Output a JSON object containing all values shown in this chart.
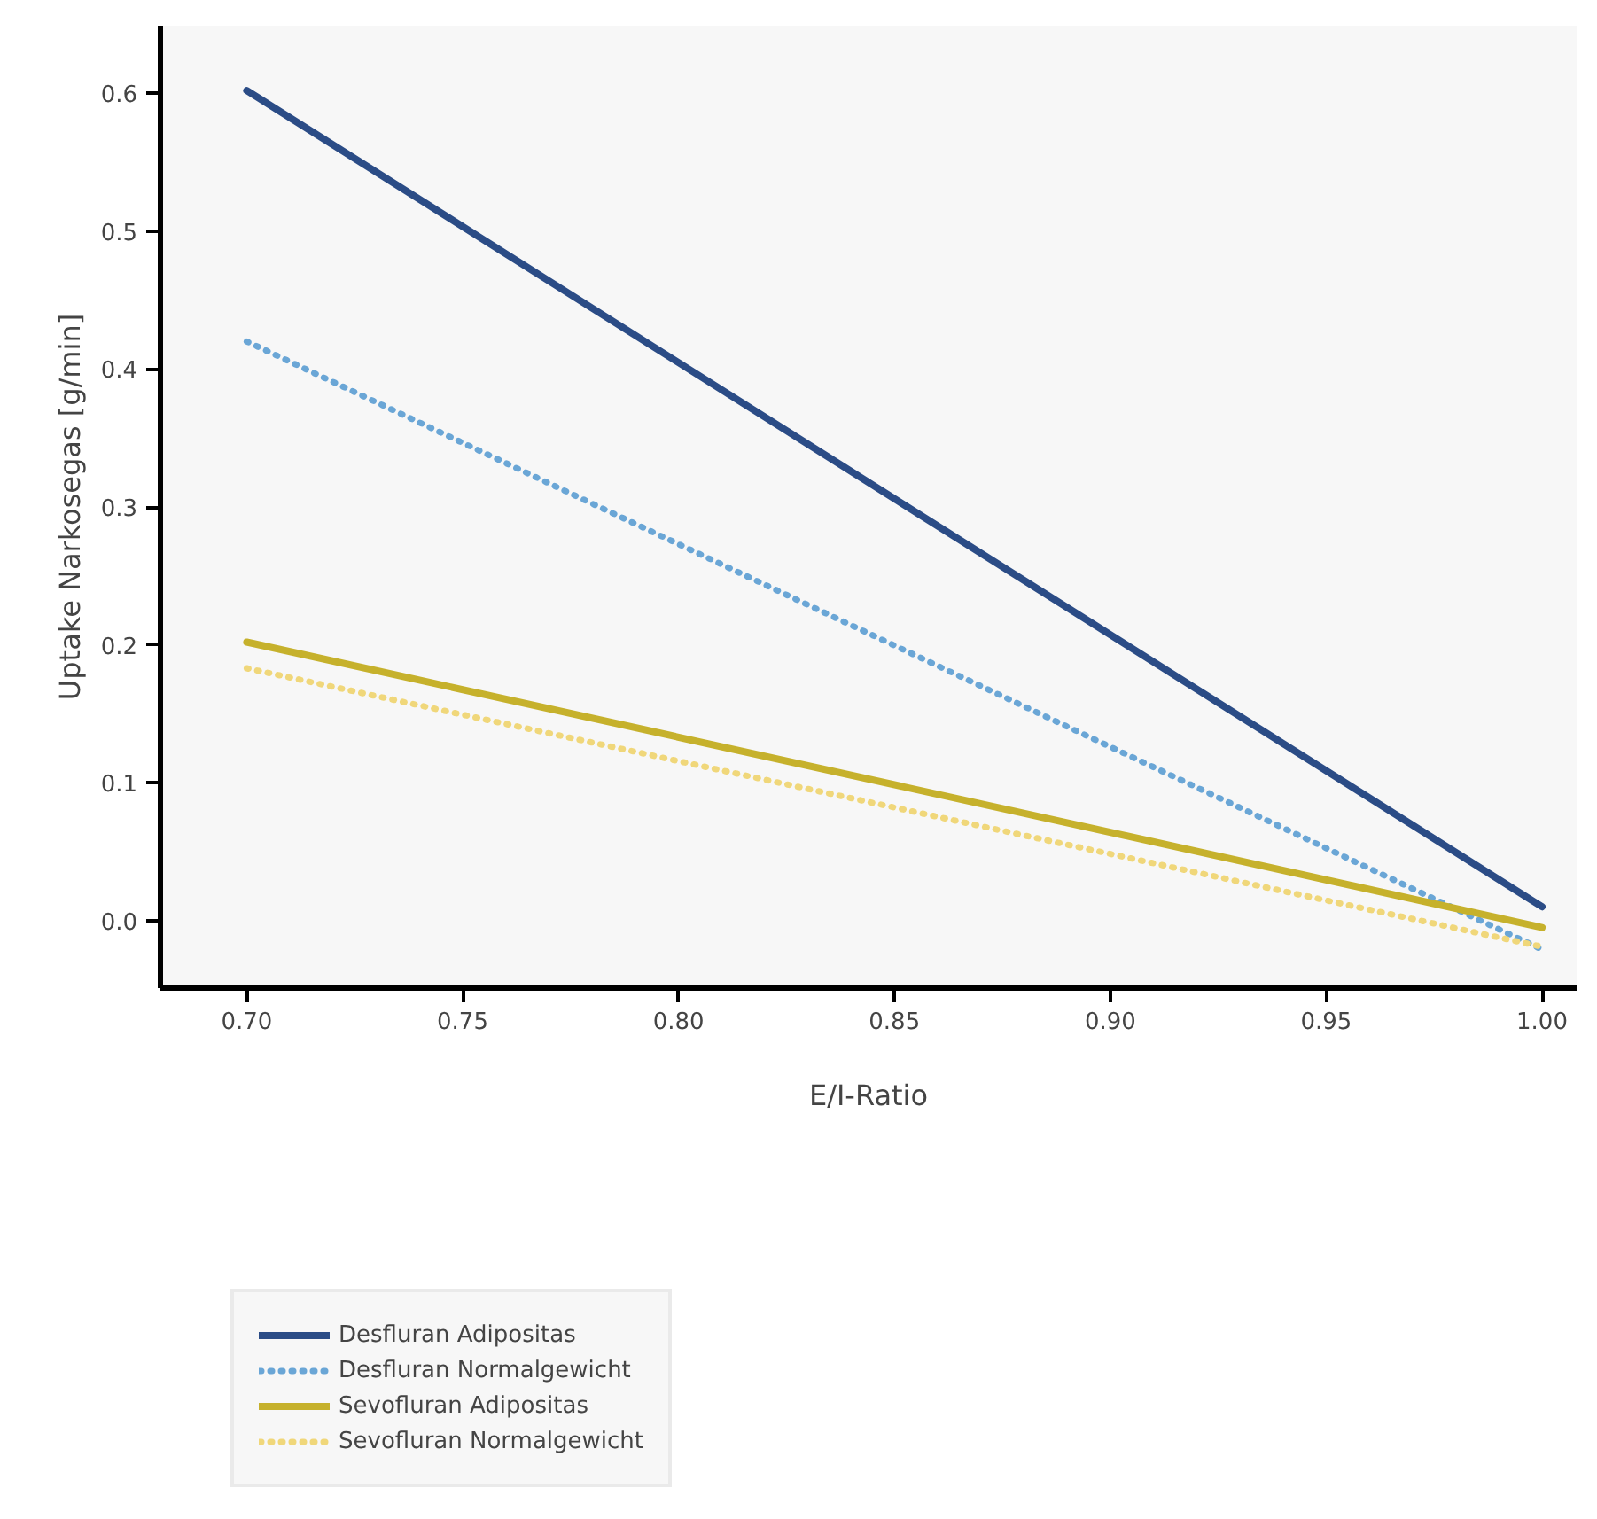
{
  "chart_data": {
    "type": "line",
    "xlabel": "E/I-Ratio",
    "ylabel": "Uptake Narkosegas [g/min]",
    "x": [
      0.7,
      1.0
    ],
    "series": [
      {
        "name": "Desfluran Adipositas",
        "color": "#2b4c86",
        "values": [
          0.602,
          0.01
        ],
        "line_style": "solid"
      },
      {
        "name": "Desfluran Normalgewicht",
        "color": "#6aa6d6",
        "values": [
          0.42,
          -0.021
        ],
        "line_style": "dotted"
      },
      {
        "name": "Sevofluran Adipositas",
        "color": "#c6b12c",
        "values": [
          0.202,
          -0.005
        ],
        "line_style": "solid"
      },
      {
        "name": "Sevofluran Normalgewicht",
        "color": "#f0d77a",
        "values": [
          0.183,
          -0.019
        ],
        "line_style": "dotted"
      }
    ],
    "xlim": [
      0.68,
      1.008
    ],
    "ylim": [
      -0.049,
      0.649
    ],
    "xticks": [
      {
        "value": 0.7,
        "label": "0.70"
      },
      {
        "value": 0.75,
        "label": "0.75"
      },
      {
        "value": 0.8,
        "label": "0.80"
      },
      {
        "value": 0.85,
        "label": "0.85"
      },
      {
        "value": 0.9,
        "label": "0.90"
      },
      {
        "value": 0.95,
        "label": "0.95"
      },
      {
        "value": 1.0,
        "label": "1.00"
      }
    ],
    "yticks": [
      {
        "value": 0,
        "label": "0.0"
      },
      0.1,
      0.2,
      0.3,
      0.4,
      0.5,
      0.6
    ],
    "grid": false,
    "legend": "bottom left",
    "marker": "none"
  }
}
